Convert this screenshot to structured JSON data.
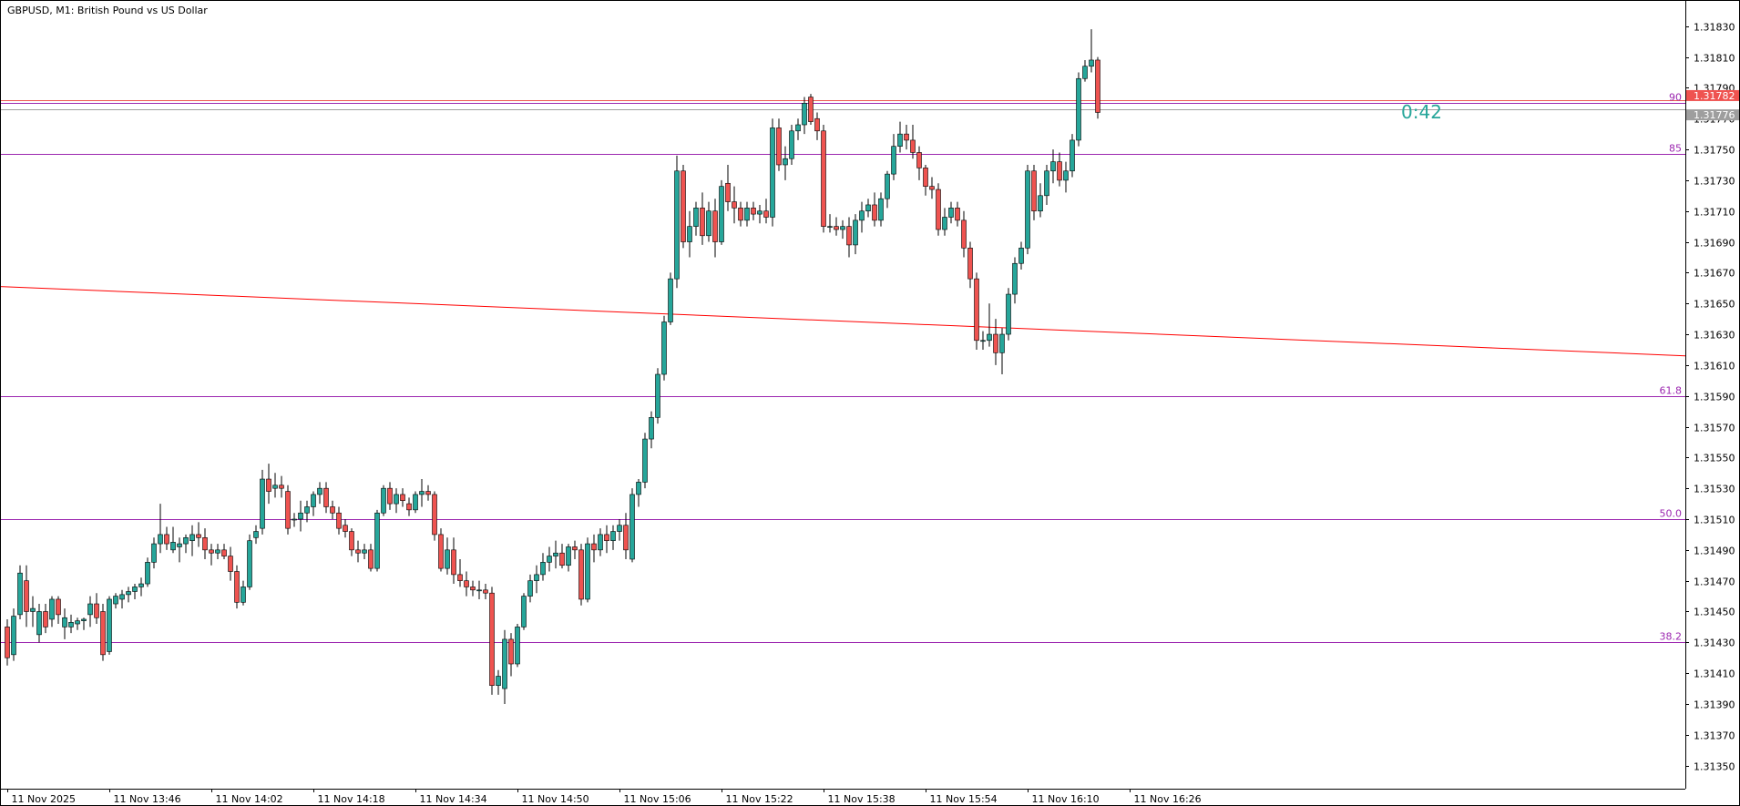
{
  "header": {
    "title": "GBPUSD, M1:  British Pound vs US Dollar"
  },
  "timer": "0:42",
  "colors": {
    "bull": "#26a69a",
    "bear": "#ef5350",
    "wick": "#000000",
    "fib": "#9c27b0",
    "trendline": "#ff0000",
    "bid_line": "#ef5350",
    "ask_line": "#9e9e9e",
    "background": "#ffffff",
    "timer_color": "#26a69a"
  },
  "chart_data": {
    "type": "candlestick",
    "symbol": "GBPUSD",
    "timeframe": "M1",
    "ylim": [
      1.31335,
      1.31847
    ],
    "y_ticks": [
      "1.31830",
      "1.31810",
      "1.31790",
      "1.31770",
      "1.31750",
      "1.31730",
      "1.31710",
      "1.31690",
      "1.31670",
      "1.31650",
      "1.31630",
      "1.31610",
      "1.31590",
      "1.31570",
      "1.31550",
      "1.31530",
      "1.31510",
      "1.31490",
      "1.31470",
      "1.31450",
      "1.31430",
      "1.31410",
      "1.31390",
      "1.31370",
      "1.31350"
    ],
    "x_ticks": [
      {
        "label": "11 Nov 2025",
        "bar": 0
      },
      {
        "label": "11 Nov 13:46",
        "bar": 16
      },
      {
        "label": "11 Nov 14:02",
        "bar": 32
      },
      {
        "label": "11 Nov 14:18",
        "bar": 48
      },
      {
        "label": "11 Nov 14:34",
        "bar": 64
      },
      {
        "label": "11 Nov 14:50",
        "bar": 80
      },
      {
        "label": "11 Nov 15:06",
        "bar": 96
      },
      {
        "label": "11 Nov 15:22",
        "bar": 112
      },
      {
        "label": "11 Nov 15:38",
        "bar": 128
      },
      {
        "label": "11 Nov 15:54",
        "bar": 144
      },
      {
        "label": "11 Nov 16:10",
        "bar": 160
      },
      {
        "label": "11 Nov 16:26",
        "bar": 176
      }
    ],
    "ohlc": [
      [
        1.3144,
        1.31445,
        1.31415,
        1.3142
      ],
      [
        1.31422,
        1.31452,
        1.31418,
        1.31447
      ],
      [
        1.31448,
        1.3148,
        1.31445,
        1.31475
      ],
      [
        1.3147,
        1.3148,
        1.3144,
        1.3145
      ],
      [
        1.3145,
        1.3146,
        1.3144,
        1.31452
      ],
      [
        1.31435,
        1.31455,
        1.3143,
        1.3145
      ],
      [
        1.3145,
        1.31455,
        1.31436,
        1.3144
      ],
      [
        1.31445,
        1.3146,
        1.3144,
        1.31458
      ],
      [
        1.31458,
        1.3146,
        1.31442,
        1.31448
      ],
      [
        1.3144,
        1.31452,
        1.31432,
        1.31446
      ],
      [
        1.3144,
        1.31448,
        1.31436,
        1.31443
      ],
      [
        1.31442,
        1.31446,
        1.31438,
        1.31444
      ],
      [
        1.31444,
        1.31446,
        1.31438,
        1.31445
      ],
      [
        1.31448,
        1.3146,
        1.3144,
        1.31455
      ],
      [
        1.31455,
        1.31462,
        1.31442,
        1.31446
      ],
      [
        1.3145,
        1.31455,
        1.31418,
        1.31422
      ],
      [
        1.31424,
        1.3146,
        1.31422,
        1.31458
      ],
      [
        1.31455,
        1.31462,
        1.31452,
        1.3146
      ],
      [
        1.31458,
        1.31464,
        1.31452,
        1.31461
      ],
      [
        1.31461,
        1.31466,
        1.31456,
        1.31463
      ],
      [
        1.31463,
        1.31468,
        1.31458,
        1.31466
      ],
      [
        1.31466,
        1.31472,
        1.3146,
        1.31468
      ],
      [
        1.31468,
        1.31485,
        1.31466,
        1.31482
      ],
      [
        1.31482,
        1.31498,
        1.31478,
        1.31494
      ],
      [
        1.31494,
        1.3152,
        1.31488,
        1.315
      ],
      [
        1.315,
        1.31505,
        1.3149,
        1.31494
      ],
      [
        1.3149,
        1.31505,
        1.31488,
        1.31495
      ],
      [
        1.31492,
        1.31498,
        1.31482,
        1.31494
      ],
      [
        1.31494,
        1.315,
        1.31488,
        1.31498
      ],
      [
        1.31496,
        1.31506,
        1.31486,
        1.315
      ],
      [
        1.315,
        1.31508,
        1.31492,
        1.31498
      ],
      [
        1.31498,
        1.31504,
        1.31484,
        1.3149
      ],
      [
        1.3149,
        1.31494,
        1.3148,
        1.31488
      ],
      [
        1.31488,
        1.31494,
        1.31484,
        1.3149
      ],
      [
        1.3149,
        1.31494,
        1.31484,
        1.31486
      ],
      [
        1.31486,
        1.31492,
        1.3147,
        1.31476
      ],
      [
        1.31476,
        1.3148,
        1.31452,
        1.31456
      ],
      [
        1.31456,
        1.3147,
        1.31454,
        1.31466
      ],
      [
        1.31466,
        1.315,
        1.31464,
        1.31496
      ],
      [
        1.31498,
        1.31506,
        1.31494,
        1.31502
      ],
      [
        1.31504,
        1.31542,
        1.315,
        1.31536
      ],
      [
        1.31536,
        1.31546,
        1.3152,
        1.31528
      ],
      [
        1.3153,
        1.3154,
        1.31524,
        1.31532
      ],
      [
        1.31532,
        1.31538,
        1.31524,
        1.3153
      ],
      [
        1.31528,
        1.31532,
        1.315,
        1.31504
      ],
      [
        1.3151,
        1.31514,
        1.31505,
        1.3151
      ],
      [
        1.3151,
        1.31522,
        1.31502,
        1.31514
      ],
      [
        1.31514,
        1.31522,
        1.31508,
        1.31518
      ],
      [
        1.31518,
        1.31528,
        1.31512,
        1.31526
      ],
      [
        1.31526,
        1.31534,
        1.3152,
        1.3153
      ],
      [
        1.3153,
        1.31534,
        1.31514,
        1.31518
      ],
      [
        1.31518,
        1.31522,
        1.3151,
        1.31514
      ],
      [
        1.31514,
        1.31518,
        1.315,
        1.31504
      ],
      [
        1.31506,
        1.3151,
        1.31498,
        1.31502
      ],
      [
        1.31502,
        1.31504,
        1.31486,
        1.3149
      ],
      [
        1.3149,
        1.31496,
        1.31482,
        1.31488
      ],
      [
        1.31488,
        1.31494,
        1.31484,
        1.3149
      ],
      [
        1.3149,
        1.31494,
        1.31476,
        1.31478
      ],
      [
        1.31478,
        1.31516,
        1.31476,
        1.31514
      ],
      [
        1.31514,
        1.31532,
        1.31512,
        1.3153
      ],
      [
        1.3153,
        1.31534,
        1.31516,
        1.3152
      ],
      [
        1.3152,
        1.3153,
        1.31514,
        1.31526
      ],
      [
        1.31526,
        1.3153,
        1.31518,
        1.31522
      ],
      [
        1.3152,
        1.31524,
        1.31512,
        1.31516
      ],
      [
        1.31516,
        1.31528,
        1.31514,
        1.31526
      ],
      [
        1.31526,
        1.31536,
        1.31518,
        1.31528
      ],
      [
        1.31528,
        1.31532,
        1.31522,
        1.31526
      ],
      [
        1.31526,
        1.31528,
        1.31496,
        1.315
      ],
      [
        1.315,
        1.31504,
        1.31476,
        1.31478
      ],
      [
        1.31478,
        1.31498,
        1.31474,
        1.3149
      ],
      [
        1.3149,
        1.31498,
        1.31468,
        1.31474
      ],
      [
        1.31474,
        1.31484,
        1.31466,
        1.3147
      ],
      [
        1.3147,
        1.31476,
        1.3146,
        1.31466
      ],
      [
        1.31466,
        1.3147,
        1.3146,
        1.31464
      ],
      [
        1.31464,
        1.3147,
        1.31458,
        1.31464
      ],
      [
        1.31464,
        1.31468,
        1.31458,
        1.31462
      ],
      [
        1.31462,
        1.31466,
        1.31396,
        1.31402
      ],
      [
        1.31402,
        1.31412,
        1.31396,
        1.31408
      ],
      [
        1.314,
        1.31438,
        1.3139,
        1.31432
      ],
      [
        1.31432,
        1.31436,
        1.31408,
        1.31416
      ],
      [
        1.31416,
        1.31442,
        1.31414,
        1.3144
      ],
      [
        1.3144,
        1.31462,
        1.31438,
        1.3146
      ],
      [
        1.3146,
        1.31474,
        1.31456,
        1.3147
      ],
      [
        1.3147,
        1.3148,
        1.31462,
        1.31474
      ],
      [
        1.31474,
        1.31488,
        1.3147,
        1.31482
      ],
      [
        1.31482,
        1.31492,
        1.31476,
        1.31486
      ],
      [
        1.31486,
        1.31496,
        1.31478,
        1.31488
      ],
      [
        1.31488,
        1.31494,
        1.31478,
        1.3148
      ],
      [
        1.3148,
        1.31494,
        1.31476,
        1.31492
      ],
      [
        1.31492,
        1.31496,
        1.31484,
        1.3149
      ],
      [
        1.3149,
        1.31494,
        1.31454,
        1.31458
      ],
      [
        1.31458,
        1.31498,
        1.31456,
        1.31494
      ],
      [
        1.31494,
        1.315,
        1.31482,
        1.3149
      ],
      [
        1.3149,
        1.31504,
        1.31486,
        1.315
      ],
      [
        1.315,
        1.31506,
        1.31488,
        1.31496
      ],
      [
        1.31496,
        1.31506,
        1.3149,
        1.31502
      ],
      [
        1.31502,
        1.3151,
        1.31496,
        1.31506
      ],
      [
        1.31506,
        1.31514,
        1.31484,
        1.3149
      ],
      [
        1.31484,
        1.3153,
        1.31482,
        1.31526
      ],
      [
        1.31526,
        1.31536,
        1.31518,
        1.31534
      ],
      [
        1.31534,
        1.31566,
        1.3153,
        1.31562
      ],
      [
        1.31562,
        1.3158,
        1.31556,
        1.31576
      ],
      [
        1.31576,
        1.31608,
        1.31572,
        1.31604
      ],
      [
        1.31604,
        1.31642,
        1.316,
        1.31638
      ],
      [
        1.31638,
        1.3167,
        1.31636,
        1.31666
      ],
      [
        1.31666,
        1.31746,
        1.3166,
        1.31736
      ],
      [
        1.31736,
        1.3174,
        1.31686,
        1.3169
      ],
      [
        1.3169,
        1.3171,
        1.3168,
        1.317
      ],
      [
        1.317,
        1.31716,
        1.31694,
        1.31712
      ],
      [
        1.31712,
        1.31722,
        1.31688,
        1.31694
      ],
      [
        1.31694,
        1.31716,
        1.3169,
        1.3171
      ],
      [
        1.3171,
        1.31718,
        1.3168,
        1.3169
      ],
      [
        1.3169,
        1.3173,
        1.31688,
        1.31726
      ],
      [
        1.31728,
        1.3174,
        1.3171,
        1.31716
      ],
      [
        1.31716,
        1.31726,
        1.31702,
        1.31712
      ],
      [
        1.31712,
        1.31716,
        1.317,
        1.31704
      ],
      [
        1.31704,
        1.31716,
        1.317,
        1.31712
      ],
      [
        1.31712,
        1.31716,
        1.31704,
        1.31708
      ],
      [
        1.31708,
        1.31714,
        1.31702,
        1.3171
      ],
      [
        1.3171,
        1.31718,
        1.31702,
        1.31706
      ],
      [
        1.31706,
        1.3177,
        1.317,
        1.31764
      ],
      [
        1.31764,
        1.3177,
        1.31736,
        1.3174
      ],
      [
        1.3174,
        1.31752,
        1.3173,
        1.31744
      ],
      [
        1.31744,
        1.31766,
        1.3174,
        1.31762
      ],
      [
        1.31762,
        1.3177,
        1.31756,
        1.31766
      ],
      [
        1.31766,
        1.31784,
        1.3176,
        1.3178
      ],
      [
        1.31784,
        1.31786,
        1.31766,
        1.31768
      ],
      [
        1.3177,
        1.31774,
        1.31756,
        1.31762
      ],
      [
        1.31762,
        1.31766,
        1.31696,
        1.317
      ],
      [
        1.317,
        1.31708,
        1.31696,
        1.317
      ],
      [
        1.317,
        1.31706,
        1.31694,
        1.31698
      ],
      [
        1.31698,
        1.31704,
        1.31692,
        1.317
      ],
      [
        1.317,
        1.31706,
        1.3168,
        1.31688
      ],
      [
        1.31688,
        1.31708,
        1.31682,
        1.31704
      ],
      [
        1.31704,
        1.31716,
        1.31696,
        1.3171
      ],
      [
        1.3171,
        1.31718,
        1.31706,
        1.31714
      ],
      [
        1.31714,
        1.31722,
        1.317,
        1.31704
      ],
      [
        1.31704,
        1.31722,
        1.317,
        1.31718
      ],
      [
        1.31718,
        1.31736,
        1.31712,
        1.31734
      ],
      [
        1.31734,
        1.3176,
        1.3173,
        1.31752
      ],
      [
        1.31752,
        1.31768,
        1.31748,
        1.3176
      ],
      [
        1.3176,
        1.31766,
        1.3175,
        1.31756
      ],
      [
        1.31756,
        1.31766,
        1.31744,
        1.31748
      ],
      [
        1.31748,
        1.31752,
        1.3173,
        1.31738
      ],
      [
        1.31738,
        1.3174,
        1.3172,
        1.31726
      ],
      [
        1.31726,
        1.31732,
        1.31718,
        1.31724
      ],
      [
        1.31724,
        1.31728,
        1.31694,
        1.31698
      ],
      [
        1.31698,
        1.31712,
        1.31694,
        1.31706
      ],
      [
        1.31706,
        1.31716,
        1.31702,
        1.31712
      ],
      [
        1.31712,
        1.31716,
        1.317,
        1.31704
      ],
      [
        1.31704,
        1.3171,
        1.3168,
        1.31686
      ],
      [
        1.31686,
        1.3169,
        1.3166,
        1.31666
      ],
      [
        1.31666,
        1.3167,
        1.3162,
        1.31626
      ],
      [
        1.31626,
        1.31632,
        1.3162,
        1.31626
      ],
      [
        1.31626,
        1.3165,
        1.31622,
        1.3163
      ],
      [
        1.3163,
        1.3164,
        1.3161,
        1.31618
      ],
      [
        1.31618,
        1.31634,
        1.31604,
        1.3163
      ],
      [
        1.3163,
        1.3166,
        1.31626,
        1.31656
      ],
      [
        1.31656,
        1.3168,
        1.3165,
        1.31676
      ],
      [
        1.31676,
        1.3169,
        1.31672,
        1.31686
      ],
      [
        1.31686,
        1.3174,
        1.31682,
        1.31736
      ],
      [
        1.31736,
        1.3174,
        1.31704,
        1.3171
      ],
      [
        1.3171,
        1.31728,
        1.31706,
        1.3172
      ],
      [
        1.3172,
        1.3174,
        1.31714,
        1.31736
      ],
      [
        1.31736,
        1.3175,
        1.31728,
        1.31742
      ],
      [
        1.31742,
        1.31748,
        1.31726,
        1.3173
      ],
      [
        1.3173,
        1.31742,
        1.31722,
        1.31736
      ],
      [
        1.31736,
        1.3176,
        1.31732,
        1.31756
      ],
      [
        1.31756,
        1.318,
        1.31752,
        1.31796
      ],
      [
        1.31796,
        1.31808,
        1.31794,
        1.31804
      ],
      [
        1.31804,
        1.31828,
        1.318,
        1.31808
      ],
      [
        1.31808,
        1.3181,
        1.3177,
        1.31774
      ]
    ],
    "horizontal_lines": [
      {
        "kind": "fib",
        "label": "90",
        "price": 1.3178
      },
      {
        "kind": "fib",
        "label": "85",
        "price": 1.31747
      },
      {
        "kind": "fib",
        "label": "61.8",
        "price": 1.3159
      },
      {
        "kind": "fib",
        "label": "50.0",
        "price": 1.3151
      },
      {
        "kind": "fib",
        "label": "38.2",
        "price": 1.3143
      },
      {
        "kind": "bid",
        "label": "1.31782",
        "price": 1.31782
      },
      {
        "kind": "ask",
        "label": "1.31776",
        "price": 1.31776
      }
    ],
    "trendline": {
      "x_start_frac": 0.0,
      "price_start": 1.31661,
      "x_end_frac": 1.0,
      "price_end": 1.31616
    }
  }
}
